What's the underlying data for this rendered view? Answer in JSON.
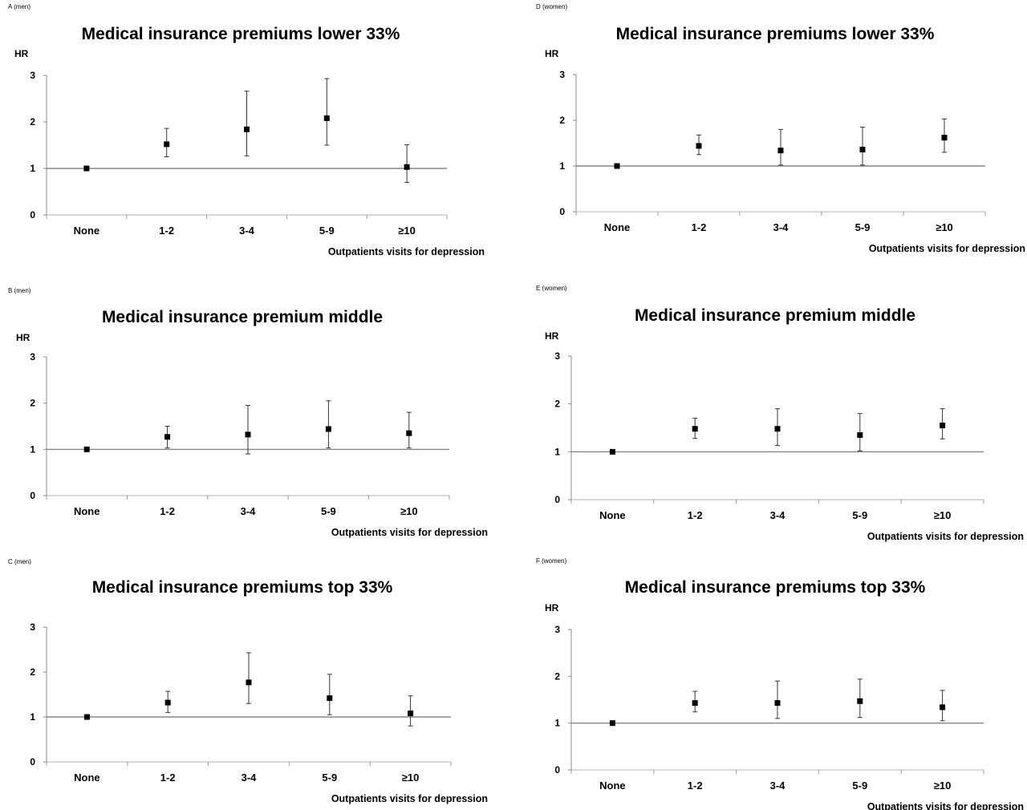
{
  "chart_data": [
    {
      "type": "scatter",
      "panel_label": "A (men)",
      "title": "Medical insurance premiums lower 33%",
      "ylabel": "HR",
      "xlabel": "Outpatients visits for depression",
      "categories": [
        "None",
        "1-2",
        "3-4",
        "5-9",
        "≥10"
      ],
      "values": [
        1.0,
        1.52,
        1.84,
        2.08,
        1.03
      ],
      "lower": [
        1.0,
        1.25,
        1.27,
        1.5,
        0.7
      ],
      "upper": [
        1.0,
        1.86,
        2.66,
        2.93,
        1.51
      ],
      "reference_line": 1,
      "ylim": [
        0,
        3
      ],
      "yticks": [
        "0",
        "1",
        "2",
        "3"
      ]
    },
    {
      "type": "scatter",
      "panel_label": "B (men)",
      "title": "Medical insurance premium middle",
      "ylabel": "HR",
      "xlabel": "Outpatients visits for depression",
      "categories": [
        "None",
        "1-2",
        "3-4",
        "5-9",
        "≥10"
      ],
      "values": [
        1.0,
        1.27,
        1.32,
        1.44,
        1.35
      ],
      "lower": [
        1.0,
        1.03,
        0.9,
        1.03,
        1.03
      ],
      "upper": [
        1.0,
        1.5,
        1.95,
        2.05,
        1.8
      ],
      "reference_line": 1,
      "ylim": [
        0,
        3
      ],
      "yticks": [
        "0",
        "1",
        "2",
        "3"
      ]
    },
    {
      "type": "scatter",
      "panel_label": "C (men)",
      "title": "Medical insurance premiums top 33%",
      "ylabel": "",
      "xlabel": "Outpatients visits for depression",
      "categories": [
        "None",
        "1-2",
        "3-4",
        "5-9",
        "≥10"
      ],
      "values": [
        1.0,
        1.32,
        1.77,
        1.42,
        1.08
      ],
      "lower": [
        1.0,
        1.1,
        1.3,
        1.05,
        0.8
      ],
      "upper": [
        1.0,
        1.57,
        2.43,
        1.95,
        1.47
      ],
      "reference_line": 1,
      "ylim": [
        0,
        3
      ],
      "yticks": [
        "0",
        "1",
        "2",
        "3"
      ]
    },
    {
      "type": "scatter",
      "panel_label": "D (women)",
      "title": "Medical insurance premiums lower 33%",
      "ylabel": "HR",
      "xlabel": "Outpatients visits for depression",
      "categories": [
        "None",
        "1-2",
        "3-4",
        "5-9",
        "≥10"
      ],
      "values": [
        1.0,
        1.44,
        1.34,
        1.36,
        1.62
      ],
      "lower": [
        1.0,
        1.25,
        1.02,
        1.02,
        1.3
      ],
      "upper": [
        1.0,
        1.68,
        1.8,
        1.85,
        2.03
      ],
      "reference_line": 1,
      "ylim": [
        0,
        3
      ],
      "yticks": [
        "0",
        "1",
        "2",
        "3"
      ]
    },
    {
      "type": "scatter",
      "panel_label": "E (women)",
      "title": "Medical insurance premium middle",
      "ylabel": "HR",
      "xlabel": "Outpatients visits for depression",
      "categories": [
        "None",
        "1-2",
        "3-4",
        "5-9",
        "≥10"
      ],
      "values": [
        1.0,
        1.48,
        1.48,
        1.35,
        1.55
      ],
      "lower": [
        1.0,
        1.28,
        1.13,
        1.02,
        1.27
      ],
      "upper": [
        1.0,
        1.7,
        1.9,
        1.8,
        1.9
      ],
      "reference_line": 1,
      "ylim": [
        0,
        3
      ],
      "yticks": [
        "0",
        "1",
        "2",
        "3"
      ]
    },
    {
      "type": "scatter",
      "panel_label": "F (women)",
      "title": "Medical insurance premiums top 33%",
      "ylabel": "HR",
      "xlabel": "Outpatients visits for depression",
      "categories": [
        "None",
        "1-2",
        "3-4",
        "5-9",
        "≥10"
      ],
      "values": [
        1.0,
        1.43,
        1.43,
        1.47,
        1.34
      ],
      "lower": [
        1.0,
        1.24,
        1.1,
        1.12,
        1.05
      ],
      "upper": [
        1.0,
        1.68,
        1.9,
        1.94,
        1.7
      ],
      "reference_line": 1,
      "ylim": [
        0,
        3
      ],
      "yticks": [
        "0",
        "1",
        "2",
        "3"
      ]
    }
  ]
}
